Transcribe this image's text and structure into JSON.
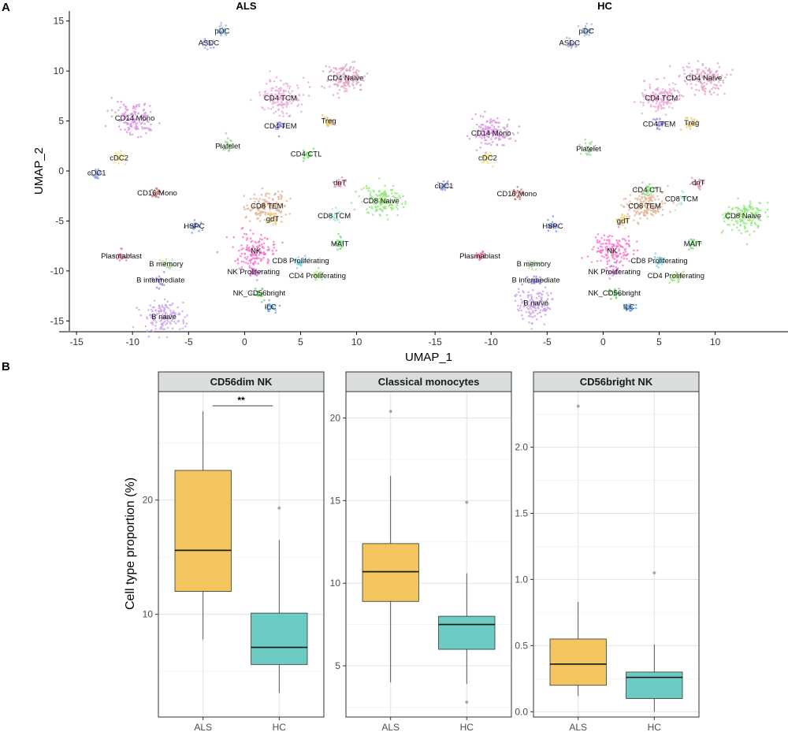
{
  "panel_a_letter": "A",
  "panel_b_letter": "B",
  "colors": {
    "ALS": "#F2C55E",
    "HC": "#6CCCC4",
    "outline": "#333333",
    "strip": "#D9DEDB"
  },
  "chart_data": [
    {
      "type": "scatter",
      "panel": "A",
      "xlabel": "UMAP_1",
      "ylabel": "UMAP_2",
      "xlim": [
        -15.5,
        16.5
      ],
      "ylim": [
        -16,
        16
      ],
      "x_ticks": [
        "-15",
        "-10",
        "-5",
        "0",
        "5",
        "10"
      ],
      "x_tick_values": [
        -15,
        -10,
        -5,
        0,
        5,
        10
      ],
      "y_ticks": [
        "15",
        "10",
        "5",
        "0",
        "-5",
        "-10",
        "-15"
      ],
      "y_tick_values": [
        15,
        10,
        5,
        0,
        -5,
        -10,
        -15
      ],
      "facets": [
        {
          "title": "ALS",
          "clusters": [
            {
              "label": "pDC",
              "x": -2.0,
              "y": 14.0,
              "color": "#8FB6E8"
            },
            {
              "label": "ASDC",
              "x": -3.2,
              "y": 12.8,
              "color": "#9DA9E8"
            },
            {
              "label": "CD4 Naive",
              "x": 9.0,
              "y": 9.3,
              "color": "#E3A0C6"
            },
            {
              "label": "CD4 TCM",
              "x": 3.2,
              "y": 7.3,
              "color": "#E8A6D6"
            },
            {
              "label": "Treg",
              "x": 7.5,
              "y": 5.0,
              "color": "#E8C15A"
            },
            {
              "label": "CD4 TEM",
              "x": 3.2,
              "y": 4.5,
              "color": "#8A80E0"
            },
            {
              "label": "CD14 Mono",
              "x": -9.8,
              "y": 5.3,
              "color": "#D890E0"
            },
            {
              "label": "Platelet",
              "x": -1.5,
              "y": 2.5,
              "color": "#8CD88A"
            },
            {
              "label": "CD4 CTL",
              "x": 5.5,
              "y": 1.7,
              "color": "#6EE06E"
            },
            {
              "label": "cDC2",
              "x": -11.2,
              "y": 1.3,
              "color": "#F0E070"
            },
            {
              "label": "cDC1",
              "x": -13.2,
              "y": -0.2,
              "color": "#8AA0E8"
            },
            {
              "label": "dnT",
              "x": 8.5,
              "y": -1.2,
              "color": "#E890B0"
            },
            {
              "label": "CD16 Mono",
              "x": -7.8,
              "y": -2.2,
              "color": "#C87070"
            },
            {
              "label": "CD8 Naive",
              "x": 12.2,
              "y": -3.0,
              "color": "#8CE870"
            },
            {
              "label": "CD8 TEM",
              "x": 2.0,
              "y": -3.5,
              "color": "#E0B090"
            },
            {
              "label": "CD8 TCM",
              "x": 8.0,
              "y": -4.5,
              "color": "#A8E8C8"
            },
            {
              "label": "gdT",
              "x": 2.5,
              "y": -4.8,
              "color": "#F0D070"
            },
            {
              "label": "HSPC",
              "x": -4.5,
              "y": -5.5,
              "color": "#7090E0"
            },
            {
              "label": "MAIT",
              "x": 8.5,
              "y": -7.3,
              "color": "#70E070"
            },
            {
              "label": "NK",
              "x": 1.0,
              "y": -8.0,
              "color": "#F870C8"
            },
            {
              "label": "Plasmablast",
              "x": -11.0,
              "y": -8.5,
              "color": "#F07090"
            },
            {
              "label": "B memory",
              "x": -7.0,
              "y": -9.3,
              "color": "#B0E0A0"
            },
            {
              "label": "CD8 Proliferating",
              "x": 5.0,
              "y": -9.0,
              "color": "#70D0E8"
            },
            {
              "label": "NK Proliferating",
              "x": 0.8,
              "y": -10.1,
              "color": "#E070E0"
            },
            {
              "label": "CD4 Proliferating",
              "x": 6.5,
              "y": -10.5,
              "color": "#A0E870"
            },
            {
              "label": "B intermediate",
              "x": -7.5,
              "y": -10.9,
              "color": "#9080E0"
            },
            {
              "label": "NK_CD56bright",
              "x": 1.3,
              "y": -12.2,
              "color": "#60D060"
            },
            {
              "label": "ILC",
              "x": 2.3,
              "y": -13.6,
              "color": "#60A0E0"
            },
            {
              "label": "B naive",
              "x": -7.2,
              "y": -14.6,
              "color": "#C8A0E8"
            }
          ]
        },
        {
          "title": "HC",
          "clusters": [
            {
              "label": "pDC",
              "x": -1.5,
              "y": 14.0,
              "color": "#8FB6E8"
            },
            {
              "label": "ASDC",
              "x": -3.0,
              "y": 12.8,
              "color": "#9DA9E8"
            },
            {
              "label": "CD4 Naive",
              "x": 9.0,
              "y": 9.3,
              "color": "#E3A0C6"
            },
            {
              "label": "CD4 TCM",
              "x": 5.2,
              "y": 7.3,
              "color": "#E8A6D6"
            },
            {
              "label": "Treg",
              "x": 7.9,
              "y": 4.8,
              "color": "#E8C15A"
            },
            {
              "label": "CD4 TEM",
              "x": 5.0,
              "y": 4.7,
              "color": "#8A80E0"
            },
            {
              "label": "CD14 Mono",
              "x": -10.0,
              "y": 3.8,
              "color": "#D890E0"
            },
            {
              "label": "Platelet",
              "x": -1.3,
              "y": 2.2,
              "color": "#8CD88A"
            },
            {
              "label": "cDC2",
              "x": -10.3,
              "y": 1.3,
              "color": "#F0E070"
            },
            {
              "label": "cDC1",
              "x": -14.2,
              "y": -1.5,
              "color": "#8AA0E8"
            },
            {
              "label": "dnT",
              "x": 8.5,
              "y": -1.2,
              "color": "#E890B0"
            },
            {
              "label": "CD4 CTL",
              "x": 4.0,
              "y": -1.9,
              "color": "#6EE06E"
            },
            {
              "label": "CD16 Mono",
              "x": -7.7,
              "y": -2.3,
              "color": "#C87070"
            },
            {
              "label": "CD8 TCM",
              "x": 7.0,
              "y": -2.8,
              "color": "#A8E8C8"
            },
            {
              "label": "CD8 TEM",
              "x": 3.7,
              "y": -3.5,
              "color": "#E0B090"
            },
            {
              "label": "CD8 Naive",
              "x": 12.5,
              "y": -4.5,
              "color": "#8CE870"
            },
            {
              "label": "gdT",
              "x": 1.8,
              "y": -5.0,
              "color": "#F0D070"
            },
            {
              "label": "HSPC",
              "x": -4.5,
              "y": -5.5,
              "color": "#7090E0"
            },
            {
              "label": "MAIT",
              "x": 8.0,
              "y": -7.3,
              "color": "#70E070"
            },
            {
              "label": "NK",
              "x": 0.8,
              "y": -8.0,
              "color": "#F870C8"
            },
            {
              "label": "Plasmablast",
              "x": -11.0,
              "y": -8.5,
              "color": "#F07090"
            },
            {
              "label": "B memory",
              "x": -6.2,
              "y": -9.3,
              "color": "#B0E0A0"
            },
            {
              "label": "CD8 Proliferating",
              "x": 5.0,
              "y": -9.0,
              "color": "#70D0E8"
            },
            {
              "label": "NK Proliferating",
              "x": 1.0,
              "y": -10.1,
              "color": "#E070E0"
            },
            {
              "label": "CD4 Proliferating",
              "x": 6.5,
              "y": -10.5,
              "color": "#A0E870"
            },
            {
              "label": "B intermediate",
              "x": -6.0,
              "y": -10.9,
              "color": "#9080E0"
            },
            {
              "label": "NK_CD56bright",
              "x": 1.0,
              "y": -12.2,
              "color": "#60D060"
            },
            {
              "label": "B naive",
              "x": -6.0,
              "y": -13.2,
              "color": "#C8A0E8"
            },
            {
              "label": "ILC",
              "x": 2.3,
              "y": -13.6,
              "color": "#60A0E0"
            }
          ]
        }
      ]
    },
    {
      "type": "box",
      "panel": "B",
      "ylabel": "Cell type proportion (%)",
      "categories": [
        "ALS",
        "HC"
      ],
      "facets": [
        {
          "title": "CD56dim NK",
          "ylim": [
            1.0,
            29.5
          ],
          "ticks": [
            10,
            20
          ],
          "tick_labels": [
            "10",
            "20"
          ],
          "minor_grid": [
            5,
            15,
            25
          ],
          "boxes": [
            {
              "group": "ALS",
              "q1": 12.0,
              "median": 15.6,
              "q3": 22.6,
              "lower": 7.8,
              "upper": 27.8,
              "outliers": []
            },
            {
              "group": "HC",
              "q1": 5.6,
              "median": 7.1,
              "q3": 10.1,
              "lower": 3.1,
              "upper": 16.5,
              "outliers": [
                19.3
              ]
            }
          ],
          "significance": "**"
        },
        {
          "title": "Classical monocytes",
          "ylim": [
            1.9,
            21.6
          ],
          "ticks": [
            5,
            10,
            15,
            20
          ],
          "tick_labels": [
            "5",
            "10",
            "15",
            "20"
          ],
          "minor_grid": [
            2.5,
            7.5,
            12.5,
            17.5
          ],
          "boxes": [
            {
              "group": "ALS",
              "q1": 8.9,
              "median": 10.7,
              "q3": 12.4,
              "lower": 4.0,
              "upper": 16.5,
              "outliers": [
                20.4
              ]
            },
            {
              "group": "HC",
              "q1": 6.0,
              "median": 7.5,
              "q3": 8.0,
              "lower": 3.9,
              "upper": 10.6,
              "outliers": [
                14.9,
                2.8
              ]
            }
          ],
          "significance": ""
        },
        {
          "title": "CD56bright NK",
          "ylim": [
            -0.04,
            2.42
          ],
          "ticks": [
            0.0,
            0.5,
            1.0,
            1.5,
            2.0
          ],
          "tick_labels": [
            "0.0",
            "0.5",
            "1.0",
            "1.5",
            "2.0"
          ],
          "minor_grid": [
            0.25,
            0.75,
            1.25,
            1.75,
            2.25
          ],
          "boxes": [
            {
              "group": "ALS",
              "q1": 0.2,
              "median": 0.36,
              "q3": 0.55,
              "lower": 0.12,
              "upper": 0.83,
              "outliers": [
                2.31
              ]
            },
            {
              "group": "HC",
              "q1": 0.1,
              "median": 0.26,
              "q3": 0.3,
              "lower": 0.0,
              "upper": 0.51,
              "outliers": [
                1.05
              ]
            }
          ],
          "significance": ""
        }
      ]
    }
  ]
}
